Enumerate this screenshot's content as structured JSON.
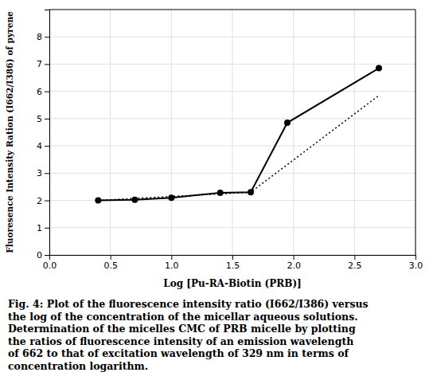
{
  "chart_data": {
    "type": "line",
    "xlabel": "Log [Pu-RA-Biotin (PRB)]",
    "ylabel": "Fluoresence Intensity Ration (I662/I386) of pyrene",
    "caption": [
      "Fig. 4: Plot of the fluorescence intensity ratio (I662/I386) versus",
      "the log of the concentration of the micellar aqueous solutions.",
      "Determination of the micelles CMC of PRB micelle by plotting",
      "the ratios of fluorescence intensity of an emission wavelength",
      "of 662 to that of excitation wavelength of 329 nm in terms of",
      "concentration logarithm."
    ],
    "series": [
      {
        "x": [
          0.4,
          0.7,
          1.0,
          1.4,
          1.65,
          1.95,
          2.7
        ],
        "values": [
          2.0,
          2.02,
          2.1,
          2.28,
          2.3,
          4.85,
          6.85
        ],
        "color": "#000000",
        "marker": "circle",
        "line_style": "solid"
      },
      {
        "x": [
          0.4,
          1.65,
          2.7
        ],
        "values": [
          2.0,
          2.3,
          5.85
        ],
        "color": "#000000",
        "line_style": "dotted"
      }
    ],
    "xlim": [
      0,
      3
    ],
    "ylim": [
      0,
      9
    ],
    "xticks": [
      {
        "value": 0,
        "label": "0.0"
      },
      {
        "value": 0.5,
        "label": "0.5"
      },
      {
        "value": 1,
        "label": "1.0"
      },
      {
        "value": 1.5,
        "label": "1.5"
      },
      {
        "value": 2,
        "label": "2.0"
      },
      {
        "value": 2.5,
        "label": "2.5"
      },
      {
        "value": 3,
        "label": "3.0"
      }
    ],
    "yticks": [
      0,
      1,
      2,
      3,
      4,
      5,
      6,
      7,
      8
    ],
    "grid": true
  }
}
